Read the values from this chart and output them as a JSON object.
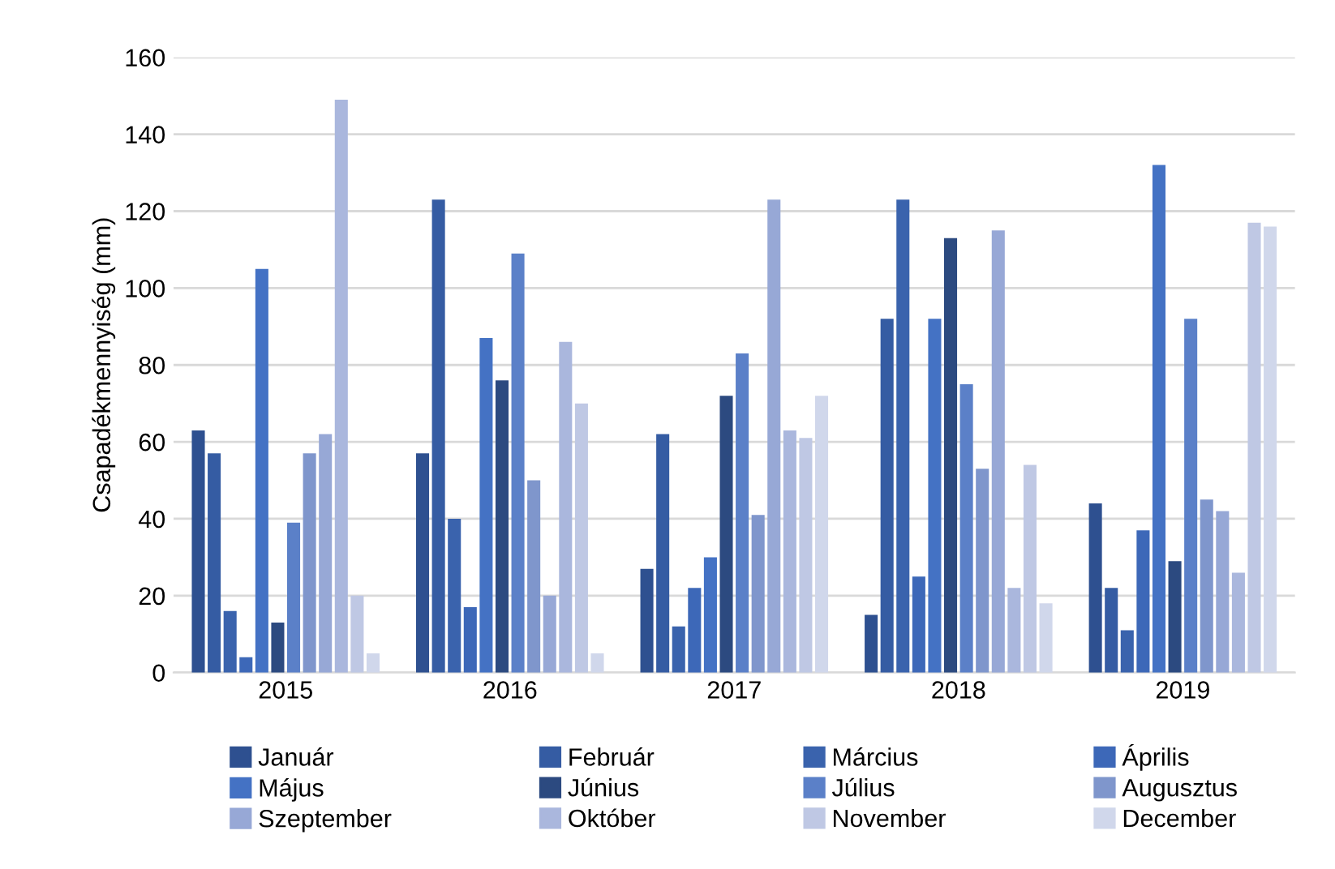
{
  "chart_data": {
    "type": "bar",
    "ylabel": "Csapadékmennyiség (mm)",
    "categories": [
      "2015",
      "2016",
      "2017",
      "2018",
      "2019"
    ],
    "ylim": [
      0,
      160
    ],
    "yticks": [
      0,
      20,
      40,
      60,
      80,
      100,
      120,
      140,
      160
    ],
    "grid": "y",
    "legend": "bottom",
    "series": [
      {
        "name": "Január",
        "color": "#2e5090",
        "values": [
          63,
          57,
          27,
          15,
          44
        ]
      },
      {
        "name": "Február",
        "color": "#355ca3",
        "values": [
          57,
          123,
          62,
          92,
          22
        ]
      },
      {
        "name": "Március",
        "color": "#3a63ad",
        "values": [
          16,
          40,
          12,
          123,
          11
        ]
      },
      {
        "name": "Április",
        "color": "#3d68b8",
        "values": [
          4,
          17,
          22,
          25,
          37
        ]
      },
      {
        "name": "Május",
        "color": "#4472c4",
        "values": [
          105,
          87,
          30,
          92,
          132
        ]
      },
      {
        "name": "Június",
        "color": "#2c4a80",
        "values": [
          13,
          76,
          72,
          113,
          29
        ]
      },
      {
        "name": "Július",
        "color": "#5b80c8",
        "values": [
          39,
          109,
          83,
          75,
          92
        ]
      },
      {
        "name": "Augusztus",
        "color": "#7f96cc",
        "values": [
          57,
          50,
          41,
          53,
          45
        ]
      },
      {
        "name": "Szeptember",
        "color": "#97a8d6",
        "values": [
          62,
          20,
          123,
          115,
          42
        ]
      },
      {
        "name": "Október",
        "color": "#aab7dd",
        "values": [
          149,
          86,
          63,
          22,
          26
        ]
      },
      {
        "name": "November",
        "color": "#bfc8e4",
        "values": [
          20,
          70,
          61,
          54,
          117
        ]
      },
      {
        "name": "December",
        "color": "#d0d7eb",
        "values": [
          5,
          5,
          72,
          18,
          116
        ]
      }
    ]
  }
}
